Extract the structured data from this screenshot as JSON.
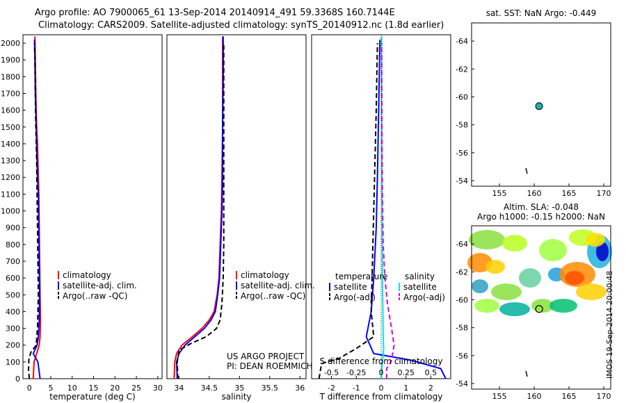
{
  "header": {
    "line1": "Argo profile: AO 7900065_61 13-Sep-2014 20140914_491 59.3368S 160.7144E",
    "line2": "Climatology: CARS2009. Satellite-adjusted climatology: synTS_20140912.nc (1.8d earlier)"
  },
  "stamp": "IMOS 19-Sep-2014 20:00:48",
  "colors": {
    "climatology": "#ff0000",
    "satellite": "#0000ff",
    "argo": "#000000",
    "sat_diff": "#00e5e5",
    "argo_diff": "#e000e0"
  },
  "chart_data": [
    {
      "id": "temperature",
      "type": "line",
      "xlabel": "temperature (deg C)",
      "ylabel": "",
      "ylim": [
        2050,
        0
      ],
      "xlim": [
        -1.5,
        31
      ],
      "xticks": [
        "0",
        "5",
        "10",
        "15",
        "20",
        "25",
        "30"
      ],
      "yticks": [
        "0",
        "100",
        "200",
        "300",
        "400",
        "500",
        "600",
        "700",
        "800",
        "900",
        "1000",
        "1100",
        "1200",
        "1300",
        "1400",
        "1500",
        "1600",
        "1700",
        "1800",
        "1900",
        "2000"
      ],
      "legend": [
        "climatology",
        "satellite-adj. clim.",
        "Argo(..raw -QC)"
      ],
      "series": [
        {
          "name": "climatology",
          "color": "#ff0000",
          "style": "solid",
          "x": [
            0.9,
            1.1,
            1.7,
            2.3,
            2.5,
            2.6,
            2.5,
            2.4,
            2.3,
            2.2,
            2.1,
            2.0,
            1.9,
            1.7,
            1.6,
            1.5,
            1.4,
            1.3
          ],
          "y": [
            0,
            100,
            150,
            200,
            250,
            350,
            500,
            700,
            900,
            1100,
            1200,
            1300,
            1400,
            1500,
            1600,
            1700,
            1900,
            2040
          ]
        },
        {
          "name": "satellite-adj. clim.",
          "color": "#0000ff",
          "style": "solid",
          "x": [
            2.5,
            2.0,
            0.9,
            1.8,
            2.1,
            2.3,
            2.4,
            2.3,
            2.2,
            2.1,
            1.9,
            1.8,
            1.7,
            1.6,
            1.5,
            1.4,
            1.3,
            1.2
          ],
          "y": [
            0,
            100,
            150,
            200,
            250,
            350,
            500,
            700,
            900,
            1100,
            1200,
            1300,
            1400,
            1500,
            1600,
            1700,
            1900,
            2020
          ]
        },
        {
          "name": "Argo(..raw -QC)",
          "color": "#000000",
          "style": "dashed",
          "x": [
            0.0,
            -0.2,
            -0.1,
            0.4,
            1.6,
            1.9,
            2.1,
            2.0,
            1.9,
            1.8,
            1.7,
            1.5,
            1.4,
            1.3,
            1.2
          ],
          "y": [
            0,
            50,
            120,
            160,
            200,
            300,
            500,
            700,
            900,
            1100,
            1300,
            1500,
            1700,
            1900,
            2000
          ]
        }
      ]
    },
    {
      "id": "salinity",
      "type": "line",
      "xlabel": "salinity",
      "ylim": [
        2050,
        0
      ],
      "xlim": [
        33.8,
        36.1
      ],
      "xticks": [
        "34",
        "34.5",
        "35",
        "35.5",
        "36"
      ],
      "legend": [
        "climatology",
        "satellite-adj. clim.",
        "Argo(..raw -QC)"
      ],
      "annotation": [
        "US ARGO PROJECT",
        "PI: DEAN ROEMMICH"
      ],
      "series": [
        {
          "name": "climatology",
          "color": "#ff0000",
          "style": "solid",
          "x": [
            33.92,
            33.93,
            33.96,
            34.05,
            34.22,
            34.38,
            34.5,
            34.58,
            34.63,
            34.66,
            34.68,
            34.7,
            34.71,
            34.72,
            34.72,
            34.72
          ],
          "y": [
            0,
            100,
            150,
            200,
            250,
            300,
            350,
            400,
            500,
            600,
            800,
            1000,
            1200,
            1500,
            1800,
            2040
          ]
        },
        {
          "name": "satellite-adj. clim.",
          "color": "#0000ff",
          "style": "solid",
          "x": [
            33.97,
            33.96,
            34.0,
            34.1,
            34.26,
            34.42,
            34.53,
            34.6,
            34.64,
            34.67,
            34.69,
            34.71,
            34.72,
            34.72,
            34.73,
            34.73
          ],
          "y": [
            0,
            100,
            150,
            200,
            250,
            300,
            350,
            400,
            500,
            600,
            800,
            1000,
            1200,
            1500,
            1800,
            2040
          ]
        },
        {
          "name": "Argo(..raw -QC)",
          "color": "#000000",
          "style": "dashed",
          "x": [
            33.98,
            33.97,
            34.0,
            34.2,
            34.45,
            34.62,
            34.68,
            34.71,
            34.73,
            34.74,
            34.74,
            34.74,
            34.74
          ],
          "y": [
            0,
            100,
            170,
            210,
            250,
            300,
            350,
            450,
            600,
            800,
            1000,
            1500,
            2000
          ]
        }
      ]
    },
    {
      "id": "differences",
      "type": "line",
      "xlabel": "T difference from climatology",
      "top_xlabel": "S difference from climatology",
      "ylim": [
        2050,
        0
      ],
      "xlim": [
        -2.8,
        2.8
      ],
      "xticks": [
        "-2",
        "-1",
        "0",
        "1",
        "2"
      ],
      "top_xticks": [
        "-0.5",
        "-0.25",
        "0",
        "0.25",
        "0.5"
      ],
      "legend_t_title": "temperature",
      "legend_s_title": "salinity",
      "legend": [
        "satellite",
        "Argo(-adj)",
        "satellite",
        "Argo(-adj)"
      ],
      "series": [
        {
          "name": "satellite",
          "group": "temperature",
          "color": "#0000ff",
          "style": "solid",
          "x": [
            2.6,
            2.4,
            1.2,
            -0.3,
            -0.6,
            -0.4,
            -0.3,
            -0.2,
            -0.15,
            -0.1,
            -0.05
          ],
          "y": [
            0,
            60,
            110,
            150,
            250,
            400,
            600,
            900,
            1200,
            1600,
            2020
          ]
        },
        {
          "name": "Argo(-adj)",
          "group": "temperature",
          "color": "#000000",
          "style": "dashed",
          "x": [
            -2.5,
            -2.4,
            -1.7,
            -1.0,
            -0.3,
            -0.4,
            -0.35,
            -0.3,
            -0.25,
            -0.2,
            -0.15
          ],
          "y": [
            0,
            90,
            120,
            180,
            250,
            400,
            700,
            1000,
            1300,
            1600,
            2000
          ]
        },
        {
          "name": "satellite",
          "group": "salinity",
          "color": "#00e5e5",
          "style": "solid",
          "x": [
            0.0,
            0.05,
            0.1,
            0.08,
            0.07,
            0.05,
            0.04,
            0.03,
            0.02,
            0.02
          ],
          "y": [
            0,
            100,
            180,
            250,
            400,
            600,
            900,
            1200,
            1600,
            2040
          ]
        },
        {
          "name": "Argo(-adj)",
          "group": "salinity",
          "color": "#e000e0",
          "style": "dashed",
          "x": [
            0.22,
            0.22,
            0.4,
            0.52,
            0.42,
            0.25,
            0.15,
            0.08,
            0.05,
            0.03,
            0.02
          ],
          "y": [
            0,
            60,
            100,
            200,
            300,
            450,
            600,
            800,
            1100,
            1500,
            2000
          ]
        }
      ]
    },
    {
      "id": "sst_map",
      "type": "scatter",
      "title": "sat. SST: NaN Argo: -0.449",
      "xlim": [
        151,
        171
      ],
      "ylim": [
        -65.3,
        -53.6
      ],
      "xticks": [
        "155",
        "160",
        "165",
        "170"
      ],
      "yticks": [
        "-54",
        "-56",
        "-58",
        "-60",
        "-62",
        "-64"
      ],
      "points": [
        {
          "x": 160.71,
          "y": -59.34,
          "color": "#20b2aa"
        }
      ],
      "track": {
        "x": [
          158.8,
          158.9,
          159.0
        ],
        "y": [
          -54.9,
          -54.7,
          -54.5
        ]
      }
    },
    {
      "id": "sla_map",
      "type": "heatmap",
      "title_line1": "Altim. SLA: -0.048",
      "title_line2": "Argo h1000: -0.15 h2000: NaN",
      "xlim": [
        151,
        171
      ],
      "ylim": [
        -65.3,
        -53.6
      ],
      "xticks": [
        "155",
        "160",
        "165",
        "170"
      ],
      "yticks": [
        "-54",
        "-56",
        "-58",
        "-60",
        "-62",
        "-64"
      ],
      "field_extent": {
        "lat": [
          -60,
          -53.6
        ]
      },
      "points": [
        {
          "x": 160.71,
          "y": -59.34
        }
      ],
      "track": {
        "x": [
          158.8,
          158.9,
          159.0
        ],
        "y": [
          -54.9,
          -54.7,
          -54.5
        ]
      }
    }
  ]
}
